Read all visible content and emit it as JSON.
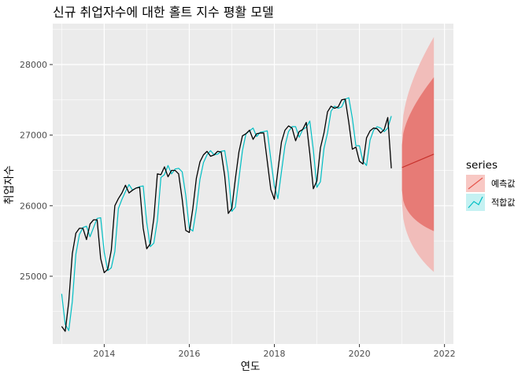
{
  "chart_data": {
    "type": "line",
    "title": "신규 취업자수에 대한 홀트 지수 평활 모델",
    "xlabel": "연도",
    "ylabel": "취업자수",
    "xlim": [
      2012.79,
      2022.21
    ],
    "ylim": [
      24040,
      28580
    ],
    "x_ticks": [
      2014,
      2016,
      2018,
      2020,
      2022
    ],
    "y_ticks": [
      25000,
      26000,
      27000,
      28000
    ],
    "grid": true,
    "legend": {
      "title": "series",
      "position": "right",
      "entries": [
        {
          "label": "예측값",
          "color": "#E6554C",
          "fill": "#F8C8C4"
        },
        {
          "label": "적합값",
          "color": "#00BFC4",
          "fill": "#C5F1F2"
        }
      ]
    },
    "colors": {
      "actual": "#000000",
      "fitted": "#00BFC4",
      "forecast": "#C62F2A",
      "band_outer": "#F1BDBA",
      "band_inner": "#E77B76",
      "panel": "#EBEBEB",
      "grid": "#FFFFFF"
    },
    "x_start": 2013.0,
    "x_step": 0.08333333,
    "actual": [
      24290,
      24220,
      24640,
      25320,
      25610,
      25680,
      25680,
      25520,
      25740,
      25800,
      25800,
      25250,
      25050,
      25100,
      25370,
      26000,
      26100,
      26180,
      26290,
      26180,
      26220,
      26250,
      26260,
      25680,
      25390,
      25460,
      25820,
      26450,
      26440,
      26550,
      26410,
      26500,
      26500,
      26450,
      26090,
      25650,
      25620,
      25960,
      26390,
      26620,
      26720,
      26770,
      26700,
      26720,
      26770,
      26760,
      26420,
      25890,
      25960,
      26380,
      26760,
      26990,
      27020,
      27070,
      26940,
      27020,
      27030,
      27030,
      26630,
      26230,
      26090,
      26500,
      26900,
      27070,
      27130,
      27100,
      26920,
      27050,
      27080,
      27180,
      26740,
      26240,
      26350,
      26820,
      27030,
      27330,
      27410,
      27380,
      27400,
      27500,
      27510,
      27180,
      26800,
      26830,
      26630,
      26590,
      26960,
      27060,
      27100,
      27090,
      27030,
      27080,
      27250,
      26530
    ],
    "fitted": [
      24750,
      24320,
      24230,
      24640,
      25310,
      25590,
      25690,
      25710,
      25560,
      25690,
      25820,
      25830,
      25340,
      25080,
      25120,
      25350,
      25960,
      26090,
      26200,
      26300,
      26220,
      26250,
      26270,
      26280,
      25760,
      25420,
      25470,
      25790,
      26400,
      26440,
      26570,
      26450,
      26520,
      26530,
      26480,
      26150,
      25680,
      25640,
      25950,
      26370,
      26610,
      26720,
      26780,
      26720,
      26730,
      26770,
      26780,
      26460,
      25920,
      25980,
      26380,
      26780,
      27020,
      27060,
      27100,
      26980,
      27040,
      27050,
      27060,
      26660,
      26280,
      26100,
      26480,
      26850,
      27050,
      27120,
      27120,
      26970,
      27080,
      27110,
      27200,
      26790,
      26260,
      26340,
      26810,
      27030,
      27340,
      27410,
      27380,
      27400,
      27510,
      27530,
      27240,
      26850,
      26850,
      26630,
      26570,
      26930,
      27070,
      27120,
      27100,
      27050,
      27100,
      27270
    ],
    "forecast": {
      "x": [
        2021.0,
        2021.75
      ],
      "mean": [
        26540,
        26730
      ],
      "lo80": [
        26220,
        25640
      ],
      "hi80": [
        26860,
        27820
      ],
      "lo95": [
        26050,
        25060
      ],
      "hi95": [
        27030,
        28390
      ]
    }
  }
}
